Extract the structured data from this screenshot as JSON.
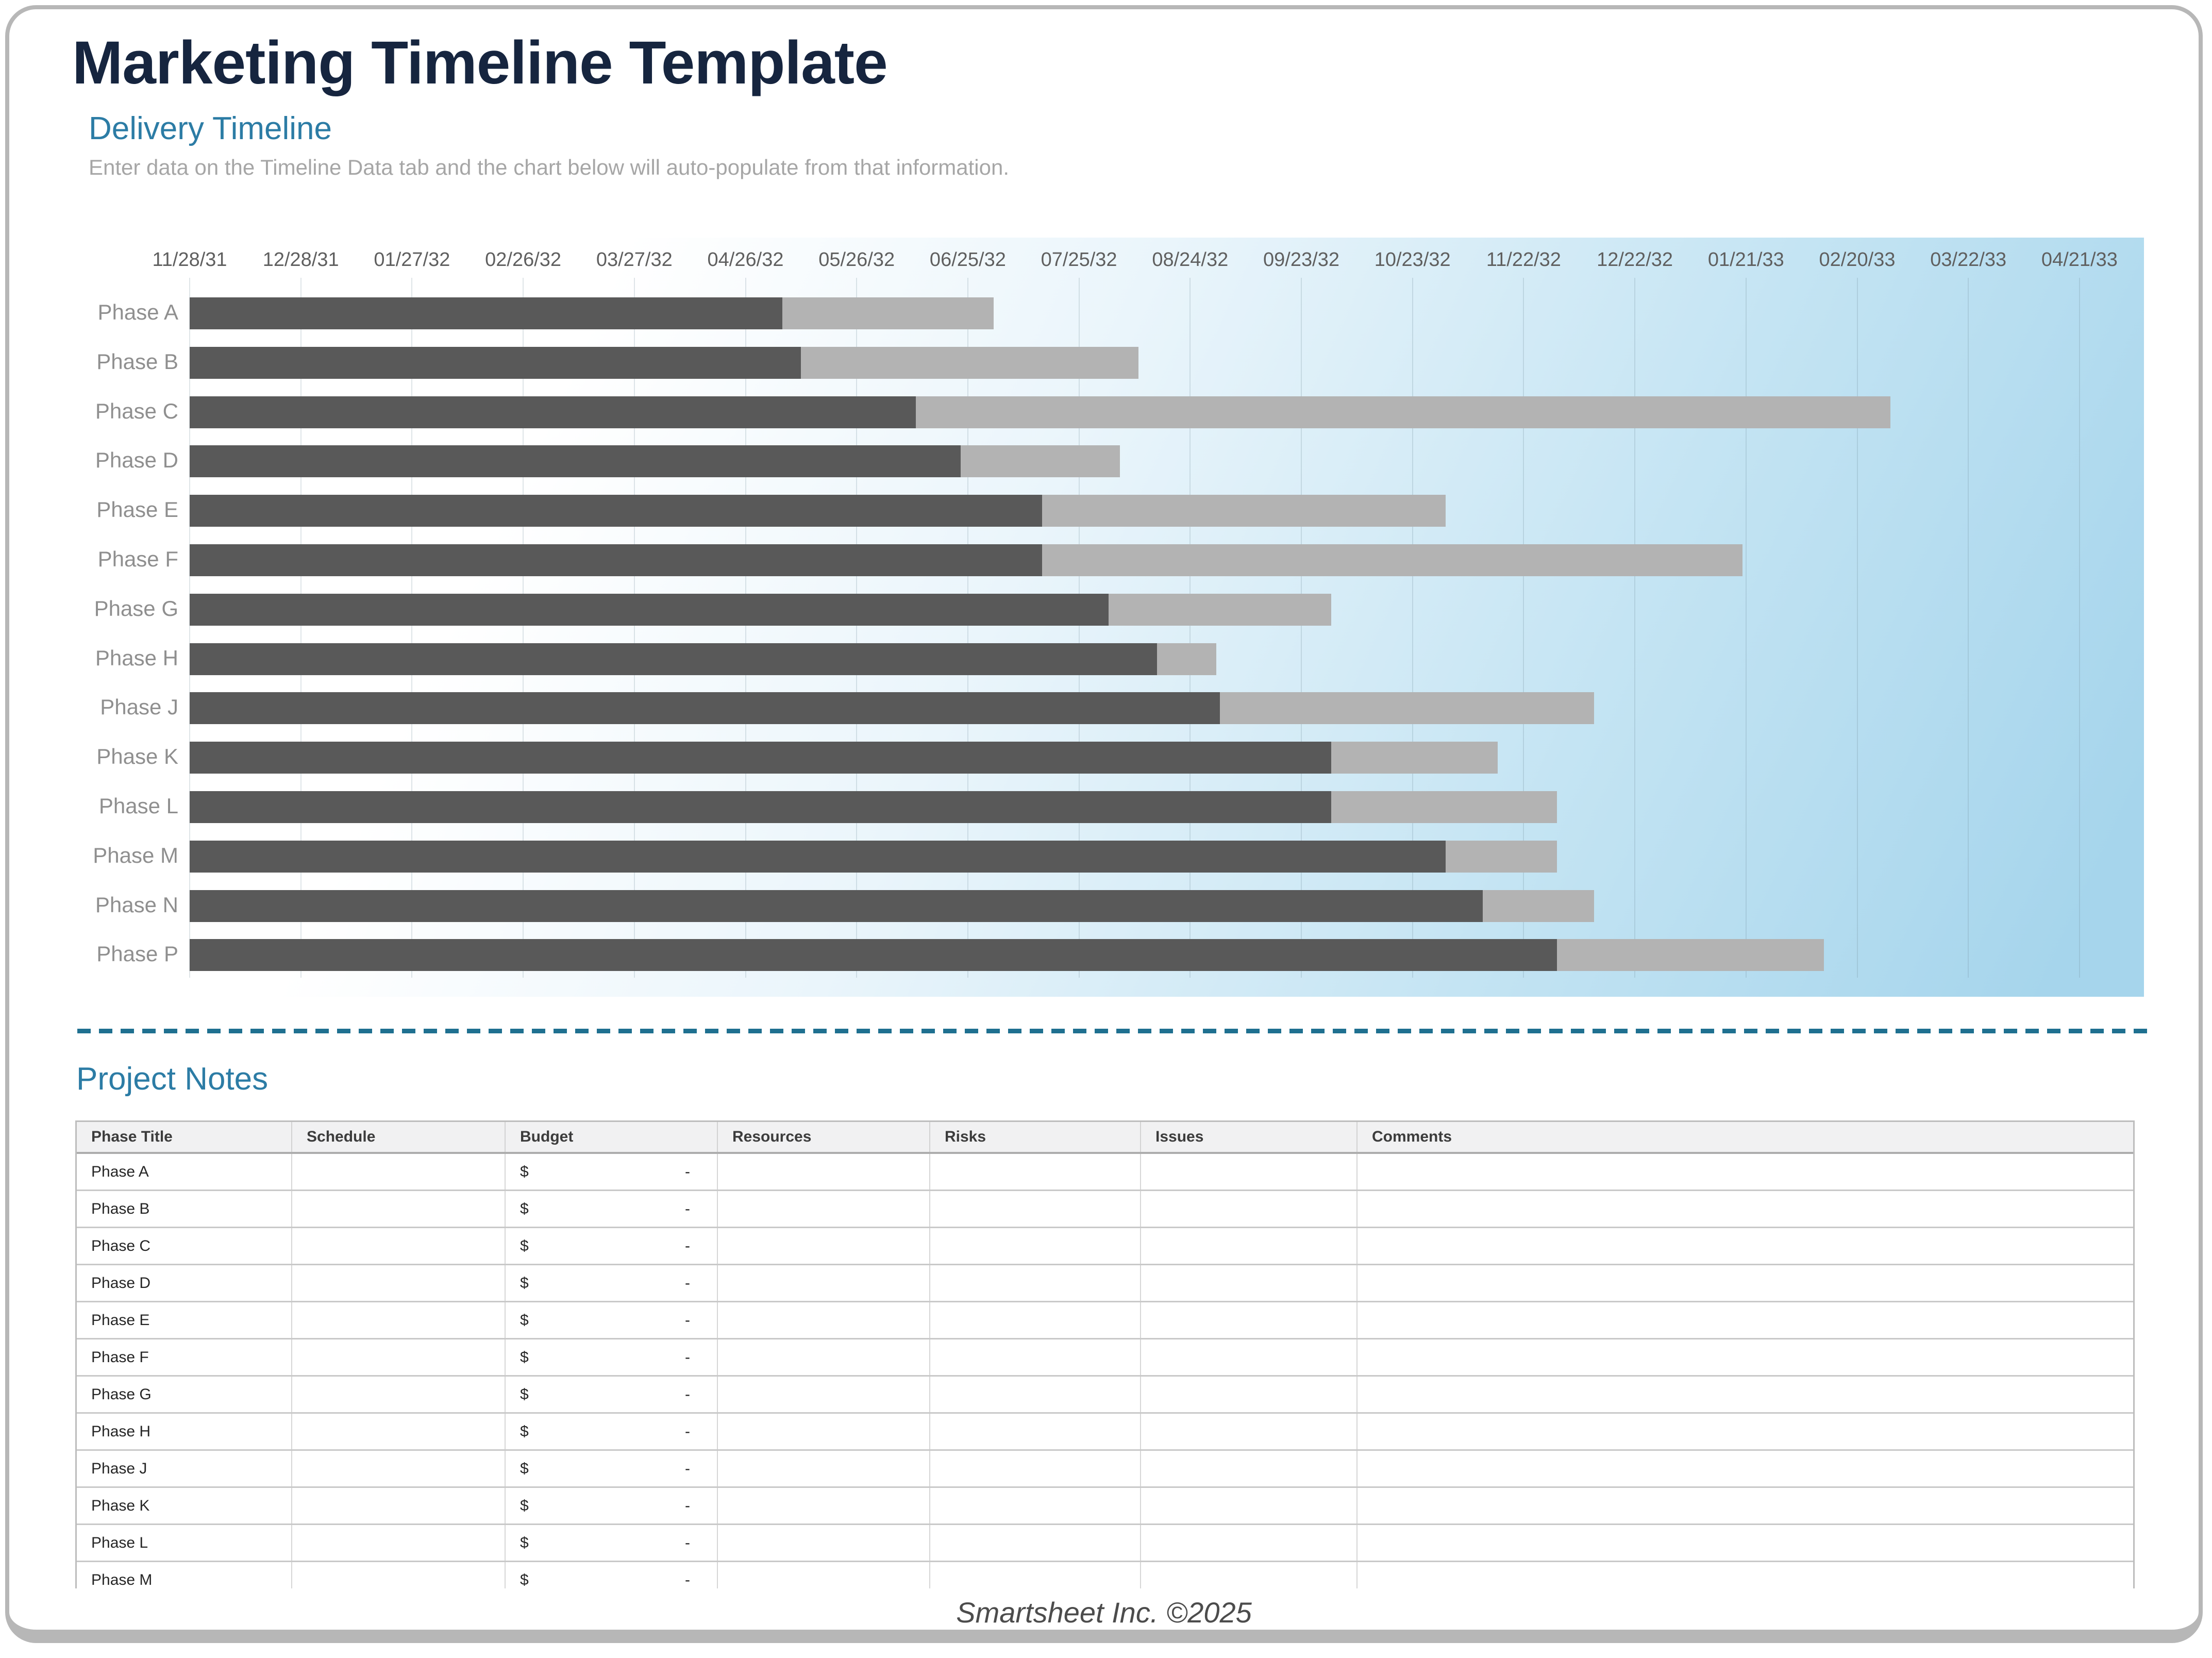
{
  "header": {
    "title": "Marketing Timeline Template",
    "section_title": "Delivery Timeline",
    "instruction": "Enter data on the Timeline Data tab and the chart below will auto-populate from that information."
  },
  "colors": {
    "title_navy": "#16253f",
    "accent_blue": "#2c7ca5",
    "muted_gray_text": "#a6a6a6",
    "bar_dark": "#595959",
    "bar_light": "#b3b3b3",
    "chart_bg_blue": "#a6d5ec",
    "divider_teal": "#1f7090",
    "table_header_bg": "#f1f1f2"
  },
  "chart_data": {
    "type": "bar",
    "variant": "horizontal-stacked-gantt",
    "title": "Delivery Timeline",
    "x_tick_labels": [
      "11/28/31",
      "12/28/31",
      "01/27/32",
      "02/26/32",
      "03/27/32",
      "04/26/32",
      "05/26/32",
      "06/25/32",
      "07/25/32",
      "08/24/32",
      "09/23/32",
      "10/23/32",
      "11/22/32",
      "12/22/32",
      "01/21/33",
      "02/20/33",
      "03/22/33",
      "04/21/33"
    ],
    "days_per_tick": 30,
    "x_range_days": [
      0,
      510
    ],
    "grid": "vertical",
    "legend": "none",
    "categories": [
      "Phase A",
      "Phase B",
      "Phase C",
      "Phase D",
      "Phase E",
      "Phase F",
      "Phase G",
      "Phase H",
      "Phase J",
      "Phase K",
      "Phase L",
      "Phase M",
      "Phase N",
      "Phase P"
    ],
    "series": [
      {
        "name": "days-to-start (dark segment)",
        "color": "#595959",
        "values": [
          160,
          165,
          196,
          208,
          230,
          230,
          248,
          261,
          278,
          308,
          308,
          339,
          349,
          369
        ]
      },
      {
        "name": "duration (light segment)",
        "color": "#b3b3b3",
        "values": [
          57,
          91,
          263,
          43,
          109,
          189,
          60,
          16,
          101,
          45,
          61,
          30,
          30,
          72
        ]
      }
    ]
  },
  "project_notes": {
    "title": "Project Notes",
    "headers": [
      "Phase Title",
      "Schedule",
      "Budget",
      "Resources",
      "Risks",
      "Issues",
      "Comments"
    ],
    "budget_placeholder": {
      "symbol": "$",
      "value": "-"
    },
    "rows": [
      {
        "phase_title": "Phase A",
        "schedule": "",
        "resources": "",
        "risks": "",
        "issues": "",
        "comments": ""
      },
      {
        "phase_title": "Phase B",
        "schedule": "",
        "resources": "",
        "risks": "",
        "issues": "",
        "comments": ""
      },
      {
        "phase_title": "Phase C",
        "schedule": "",
        "resources": "",
        "risks": "",
        "issues": "",
        "comments": ""
      },
      {
        "phase_title": "Phase D",
        "schedule": "",
        "resources": "",
        "risks": "",
        "issues": "",
        "comments": ""
      },
      {
        "phase_title": "Phase E",
        "schedule": "",
        "resources": "",
        "risks": "",
        "issues": "",
        "comments": ""
      },
      {
        "phase_title": "Phase F",
        "schedule": "",
        "resources": "",
        "risks": "",
        "issues": "",
        "comments": ""
      },
      {
        "phase_title": "Phase G",
        "schedule": "",
        "resources": "",
        "risks": "",
        "issues": "",
        "comments": ""
      },
      {
        "phase_title": "Phase H",
        "schedule": "",
        "resources": "",
        "risks": "",
        "issues": "",
        "comments": ""
      },
      {
        "phase_title": "Phase J",
        "schedule": "",
        "resources": "",
        "risks": "",
        "issues": "",
        "comments": ""
      },
      {
        "phase_title": "Phase K",
        "schedule": "",
        "resources": "",
        "risks": "",
        "issues": "",
        "comments": ""
      },
      {
        "phase_title": "Phase L",
        "schedule": "",
        "resources": "",
        "risks": "",
        "issues": "",
        "comments": ""
      },
      {
        "phase_title": "Phase M",
        "schedule": "",
        "resources": "",
        "risks": "",
        "issues": "",
        "comments": ""
      }
    ]
  },
  "footer": {
    "text": "Smartsheet Inc. ©2025"
  }
}
